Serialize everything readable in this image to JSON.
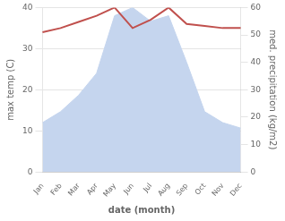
{
  "chart_data": {
    "type": "line",
    "xlabel": "date (month)",
    "ylabel": "max temp (C)",
    "y2label": "med. precipitation (kg/m2)",
    "categories": [
      "Jan",
      "Feb",
      "Mar",
      "Apr",
      "May",
      "Jun",
      "Jul",
      "Aug",
      "Sep",
      "Oct",
      "Nov",
      "Dec"
    ],
    "series": [
      {
        "type": "area",
        "axis": "y2",
        "color": "#c5d5ee",
        "values": [
          18,
          22,
          28,
          36,
          57,
          60,
          55,
          57,
          40,
          22,
          18,
          16
        ]
      },
      {
        "type": "line",
        "color": "#c0504d",
        "values": [
          34,
          35,
          36.5,
          38,
          40,
          35,
          37,
          40,
          36,
          35.5,
          35,
          35
        ]
      }
    ],
    "ylim": [
      0,
      40
    ],
    "yticks": [
      0,
      10,
      20,
      30,
      40
    ],
    "y2lim": [
      0,
      60
    ],
    "y2ticks": [
      0,
      10,
      20,
      30,
      40,
      50,
      60
    ],
    "grid": true
  }
}
